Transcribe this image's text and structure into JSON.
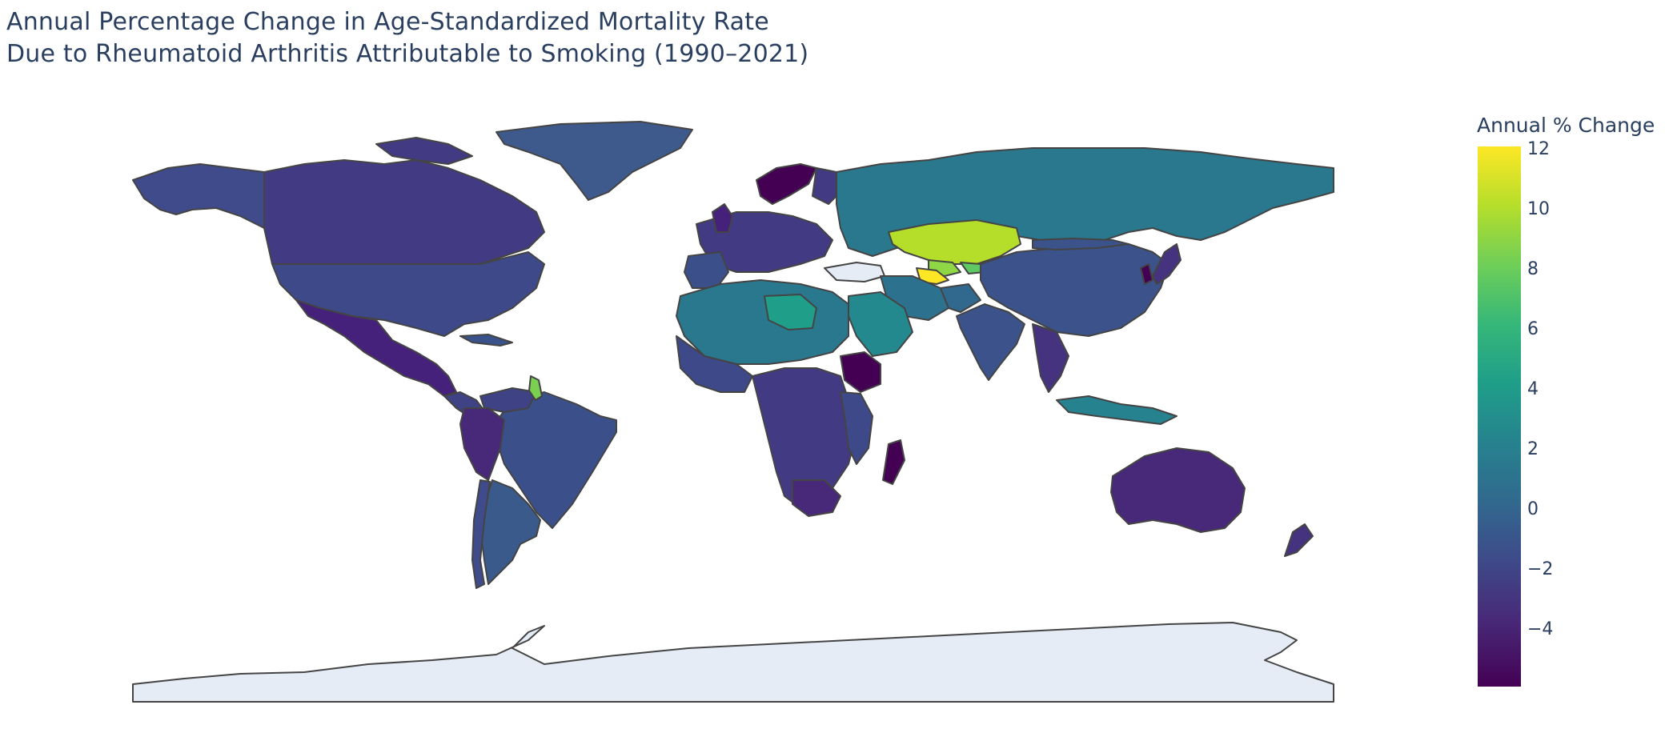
{
  "title": {
    "line1": "Annual Percentage Change in Age-Standardized Mortality Rate",
    "line2": "Due to Rheumatoid Arthritis Attributable to Smoking (1990–2021)"
  },
  "colorbar": {
    "title": "Annual % Change",
    "ticks": [
      "12",
      "10",
      "8",
      "6",
      "4",
      "2",
      "0",
      "−2",
      "−4"
    ],
    "range": [
      -6,
      12
    ],
    "colorscale": "Viridis"
  },
  "colors": {
    "low": "#440154",
    "mid": "#31688e",
    "high": "#fde725",
    "no_data": "#e5ecf6",
    "border": "#444444"
  }
}
